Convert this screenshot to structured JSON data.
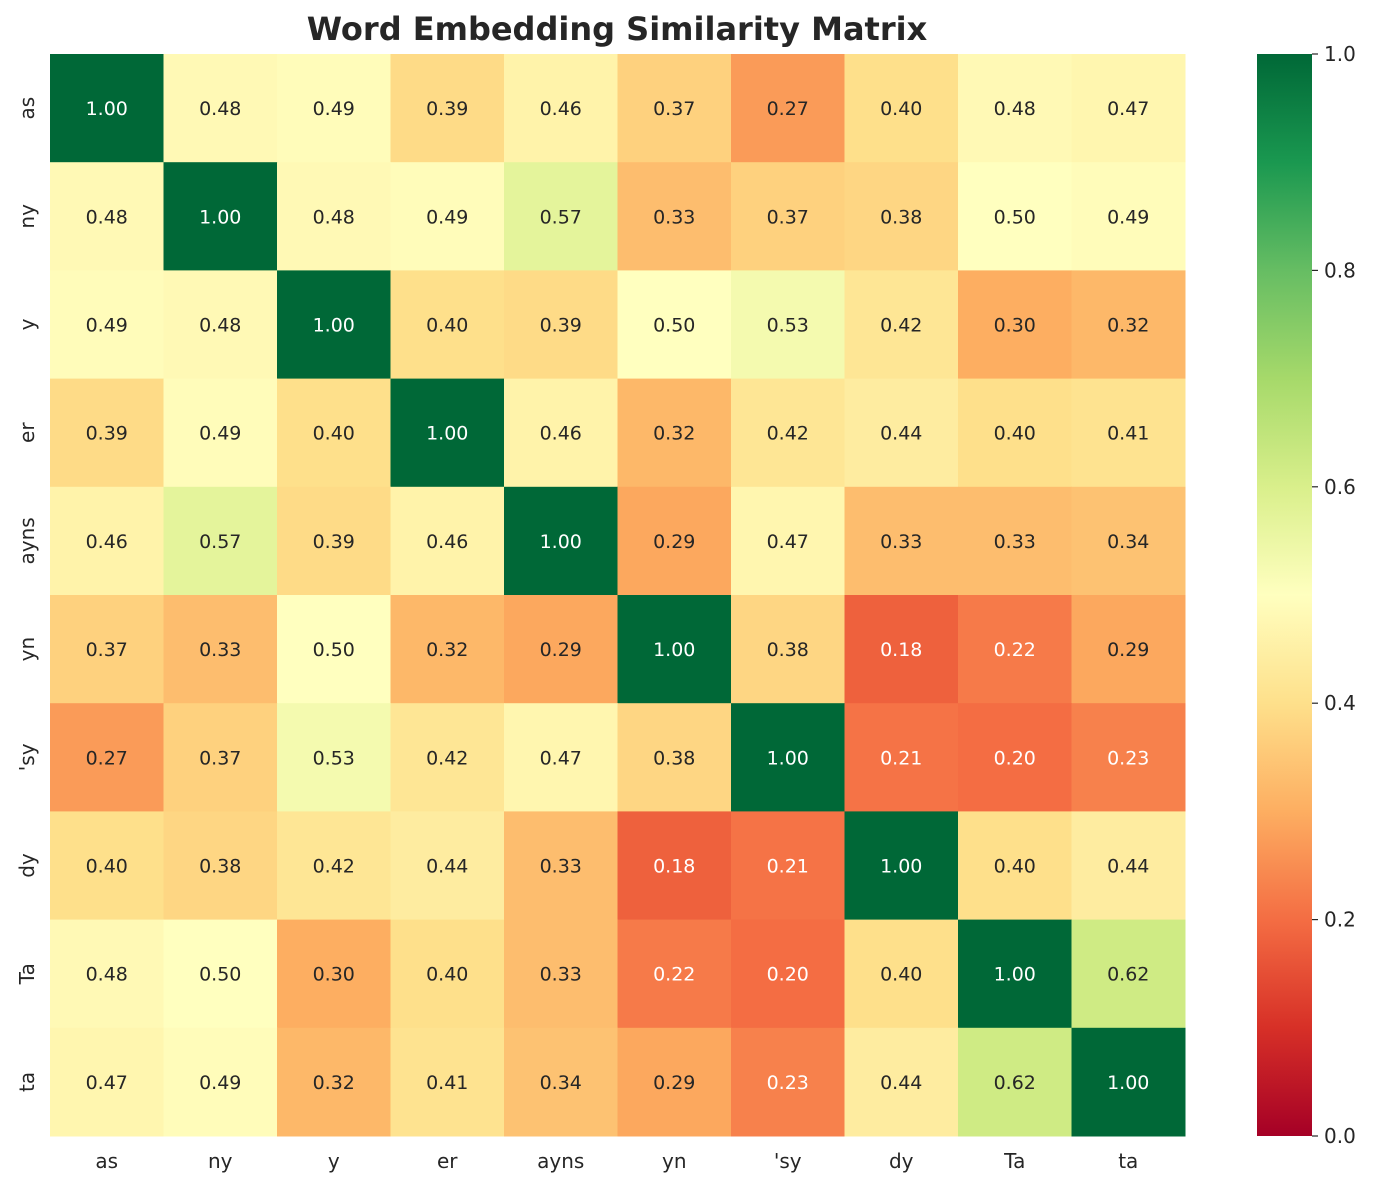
{
  "chart_data": {
    "type": "heatmap",
    "title": "Word Embedding Similarity Matrix",
    "xlabel": "",
    "ylabel": "",
    "x_categories": [
      "as",
      "ny",
      "y",
      "er",
      "ayns",
      "yn",
      "'sy",
      "dy",
      "Ta",
      "ta"
    ],
    "y_categories": [
      "as",
      "ny",
      "y",
      "er",
      "ayns",
      "yn",
      "'sy",
      "dy",
      "Ta",
      "ta"
    ],
    "values": [
      [
        1.0,
        0.48,
        0.49,
        0.39,
        0.46,
        0.37,
        0.27,
        0.4,
        0.48,
        0.47
      ],
      [
        0.48,
        1.0,
        0.48,
        0.49,
        0.57,
        0.33,
        0.37,
        0.38,
        0.5,
        0.49
      ],
      [
        0.49,
        0.48,
        1.0,
        0.4,
        0.39,
        0.5,
        0.53,
        0.42,
        0.3,
        0.32
      ],
      [
        0.39,
        0.49,
        0.4,
        1.0,
        0.46,
        0.32,
        0.42,
        0.44,
        0.4,
        0.41
      ],
      [
        0.46,
        0.57,
        0.39,
        0.46,
        1.0,
        0.29,
        0.47,
        0.33,
        0.33,
        0.34
      ],
      [
        0.37,
        0.33,
        0.5,
        0.32,
        0.29,
        1.0,
        0.38,
        0.18,
        0.22,
        0.29
      ],
      [
        0.27,
        0.37,
        0.53,
        0.42,
        0.47,
        0.38,
        1.0,
        0.21,
        0.2,
        0.23
      ],
      [
        0.4,
        0.38,
        0.42,
        0.44,
        0.33,
        0.18,
        0.21,
        1.0,
        0.4,
        0.44
      ],
      [
        0.48,
        0.5,
        0.3,
        0.4,
        0.33,
        0.22,
        0.2,
        0.4,
        1.0,
        0.62
      ],
      [
        0.47,
        0.49,
        0.32,
        0.41,
        0.34,
        0.29,
        0.23,
        0.44,
        0.62,
        1.0
      ]
    ],
    "value_format": "0.00",
    "colorscale": "RdYlGn",
    "colorbar": {
      "range": [
        0.0,
        1.0
      ],
      "ticks": [
        0.0,
        0.2,
        0.4,
        0.6,
        0.8,
        1.0
      ],
      "tick_labels": [
        "0.0",
        "0.2",
        "0.4",
        "0.6",
        "0.8",
        "1.0"
      ]
    },
    "grid": false,
    "legend": "colorbar-right"
  }
}
